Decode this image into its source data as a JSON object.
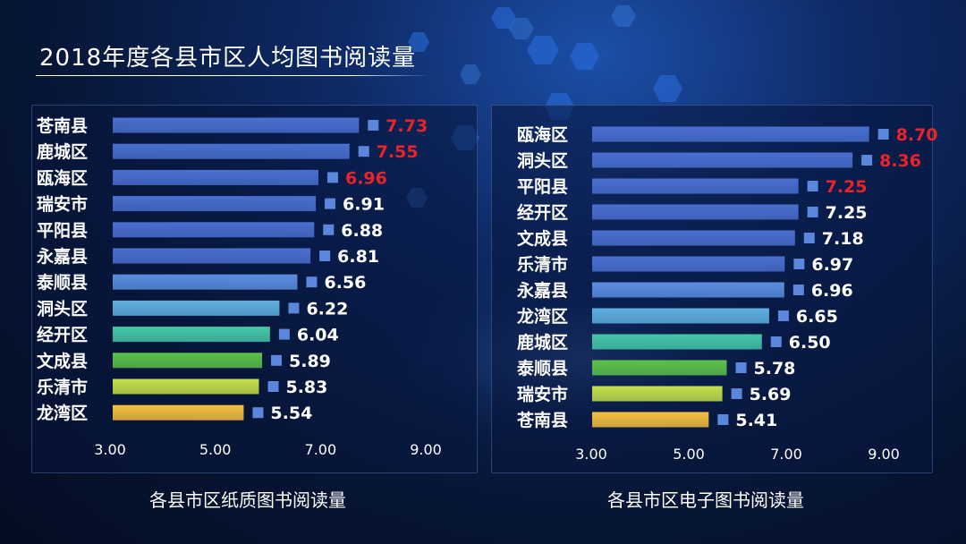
{
  "title": "2018年度各县市区人均图书阅读量",
  "chart_data": [
    {
      "type": "bar",
      "orientation": "horizontal",
      "title": "各县市区纸质图书阅读量",
      "categories": [
        "苍南县",
        "鹿城区",
        "瓯海区",
        "瑞安市",
        "平阳县",
        "永嘉县",
        "泰顺县",
        "洞头区",
        "经开区",
        "文成县",
        "乐清市",
        "龙湾区"
      ],
      "values": [
        7.73,
        7.55,
        6.96,
        6.91,
        6.88,
        6.81,
        6.56,
        6.22,
        6.04,
        5.89,
        5.83,
        5.54
      ],
      "value_labels": [
        "7.73",
        "7.55",
        "6.96",
        "6.91",
        "6.88",
        "6.81",
        "6.56",
        "6.22",
        "6.04",
        "5.89",
        "5.83",
        "5.54"
      ],
      "highlight_top": 3,
      "xlim": [
        3.0,
        9.0
      ],
      "xticks": [
        "3.00",
        "5.00",
        "7.00",
        "9.00"
      ],
      "xtick_values": [
        3,
        5,
        7,
        9
      ],
      "grid": false,
      "bar_colors": [
        "#4a6fd0",
        "#4a6fd0",
        "#4a6fd0",
        "#4a6fd0",
        "#4a6fd0",
        "#4a6fd0",
        "#5b8ee0",
        "#5fb0e0",
        "#44c8a8",
        "#5cc24a",
        "#c4e04a",
        "#f5c040"
      ]
    },
    {
      "type": "bar",
      "orientation": "horizontal",
      "title": "各县市区电子图书阅读量",
      "categories": [
        "瓯海区",
        "洞头区",
        "平阳县",
        "经开区",
        "文成县",
        "乐清市",
        "永嘉县",
        "龙湾区",
        "鹿城区",
        "泰顺县",
        "瑞安市",
        "苍南县"
      ],
      "values": [
        8.7,
        8.36,
        7.25,
        7.25,
        7.18,
        6.97,
        6.96,
        6.65,
        6.5,
        5.78,
        5.69,
        5.41
      ],
      "value_labels": [
        "8.70",
        "8.36",
        "7.25",
        "7.25",
        "7.18",
        "6.97",
        "6.96",
        "6.65",
        "6.50",
        "5.78",
        "5.69",
        "5.41"
      ],
      "highlight_top": 3,
      "xlim": [
        3.0,
        9.0
      ],
      "xticks": [
        "3.00",
        "5.00",
        "7.00",
        "9.00"
      ],
      "xtick_values": [
        3,
        5,
        7,
        9
      ],
      "grid": false,
      "bar_colors": [
        "#4a6fd0",
        "#4a6fd0",
        "#4a6fd0",
        "#4a6fd0",
        "#4a6fd0",
        "#4a6fd0",
        "#5b8ee0",
        "#5fb0e0",
        "#44c8a8",
        "#5cc24a",
        "#c4e04a",
        "#f5c040"
      ]
    }
  ],
  "colors": {
    "highlight_label": "#e8232a",
    "normal_label": "#ffffff",
    "marker": "#5a86dc",
    "tick_label": "#ffffff"
  }
}
